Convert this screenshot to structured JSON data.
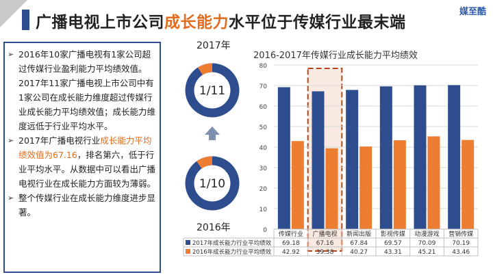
{
  "brand": "媒至酷",
  "title": {
    "part1": "广播电视上市公司",
    "highlight": "成长能力",
    "part2": "水平位于传媒行业最末端"
  },
  "bullets": [
    {
      "pre": "2016年10家广播电视有1家公司超过传媒行业盈利能力平均绩效值。2017年11家广播电视上市公司中有1家公司在成长能力维度超过传媒行业成长能力平均绩效值；成长能力维度远低于行业平均水平。",
      "highlight": "",
      "post": ""
    },
    {
      "pre": "2017年广播电视行业",
      "highlight": "成长能力平均绩效值为67.16",
      "post": "，排名第六，低于行业平均水平。从数据中可以看出广播电视行业在成长能力方面较为薄弱。"
    },
    {
      "pre": "整个传媒行业在成长能力维度进步显著。",
      "highlight": "",
      "post": ""
    }
  ],
  "donuts": {
    "top": {
      "year": "2017年",
      "label": "1/11",
      "fraction": 0.0909
    },
    "bottom": {
      "year": "2016年",
      "label": "1/10",
      "fraction": 0.1
    }
  },
  "colors": {
    "blue": "#2e4d8f",
    "orange": "#ed7d31",
    "grid": "#d9d9d9"
  },
  "chart_data": {
    "type": "bar",
    "title": "2016-2017年传媒行业成长能力平均绩效",
    "categories": [
      "传媒行业",
      "广播电视",
      "新闻出版",
      "影视传媒",
      "动漫游戏",
      "营销传媒"
    ],
    "series": [
      {
        "name": "2017年成长能力行业平均绩效",
        "values": [
          69.18,
          67.16,
          67.84,
          69.57,
          70.09,
          70.19
        ],
        "value_labels": [
          "69.18",
          "67.16",
          "67.84",
          "69.57",
          "70.09",
          "70.19"
        ]
      },
      {
        "name": "2016年成长能力行业平均绩效",
        "values": [
          42.92,
          39.38,
          40.27,
          43.31,
          45.21,
          43.46
        ],
        "value_labels": [
          "42.92",
          "39.38",
          "40.27",
          "43.31",
          "45.21",
          "43.46"
        ]
      }
    ],
    "ylim": [
      0,
      80
    ],
    "yticks": [
      0,
      10,
      20,
      30,
      40,
      50,
      60,
      70,
      80
    ],
    "highlight_category": "广播电视",
    "legend": "bottom-table"
  }
}
